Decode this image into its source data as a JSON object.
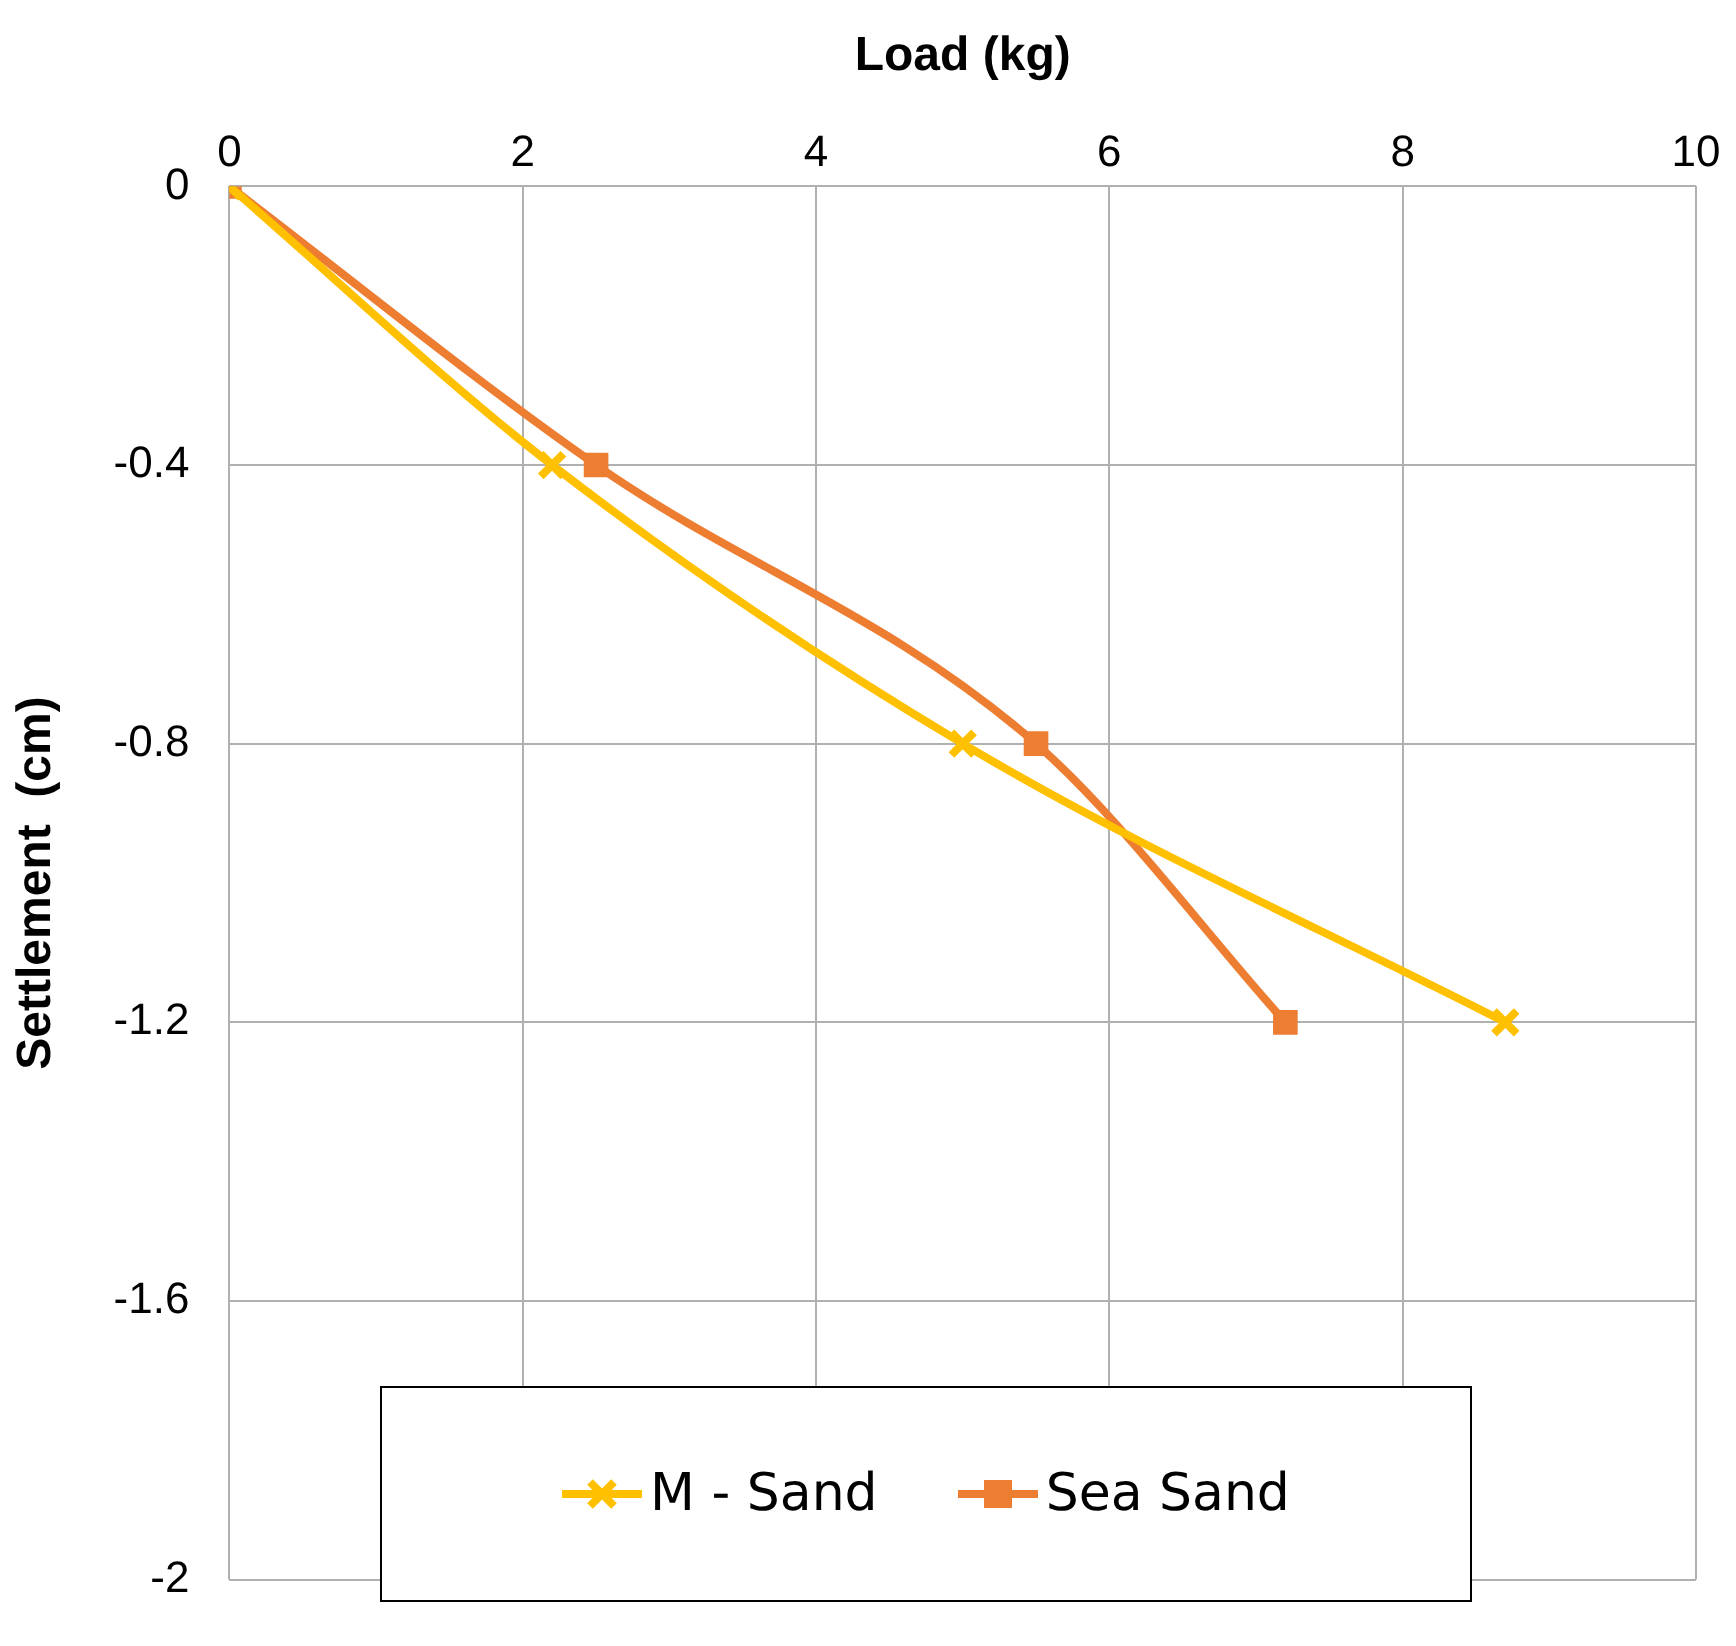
{
  "chart_data": {
    "type": "line",
    "xlabel": "Load (kg)",
    "ylabel": "Settlement  (cm)",
    "xlim": [
      0,
      10
    ],
    "xticks": [
      0,
      2,
      4,
      6,
      8,
      10
    ],
    "ylim": [
      -2,
      0
    ],
    "yticks": [
      0,
      -0.4,
      -0.8,
      -1.2,
      -1.6,
      -2
    ],
    "grid": true,
    "legend": "bottom",
    "series": [
      {
        "name": "M - Sand",
        "color": "#ffc000",
        "marker": "cross",
        "x": [
          0,
          2.2,
          5.0,
          8.7
        ],
        "values": [
          0,
          -0.4,
          -0.8,
          -1.2
        ]
      },
      {
        "name": "Sea Sand",
        "color": "#ed7d31",
        "marker": "square",
        "x": [
          0,
          2.5,
          5.5,
          7.2
        ],
        "values": [
          0,
          -0.4,
          -0.8,
          -1.2
        ]
      }
    ]
  }
}
